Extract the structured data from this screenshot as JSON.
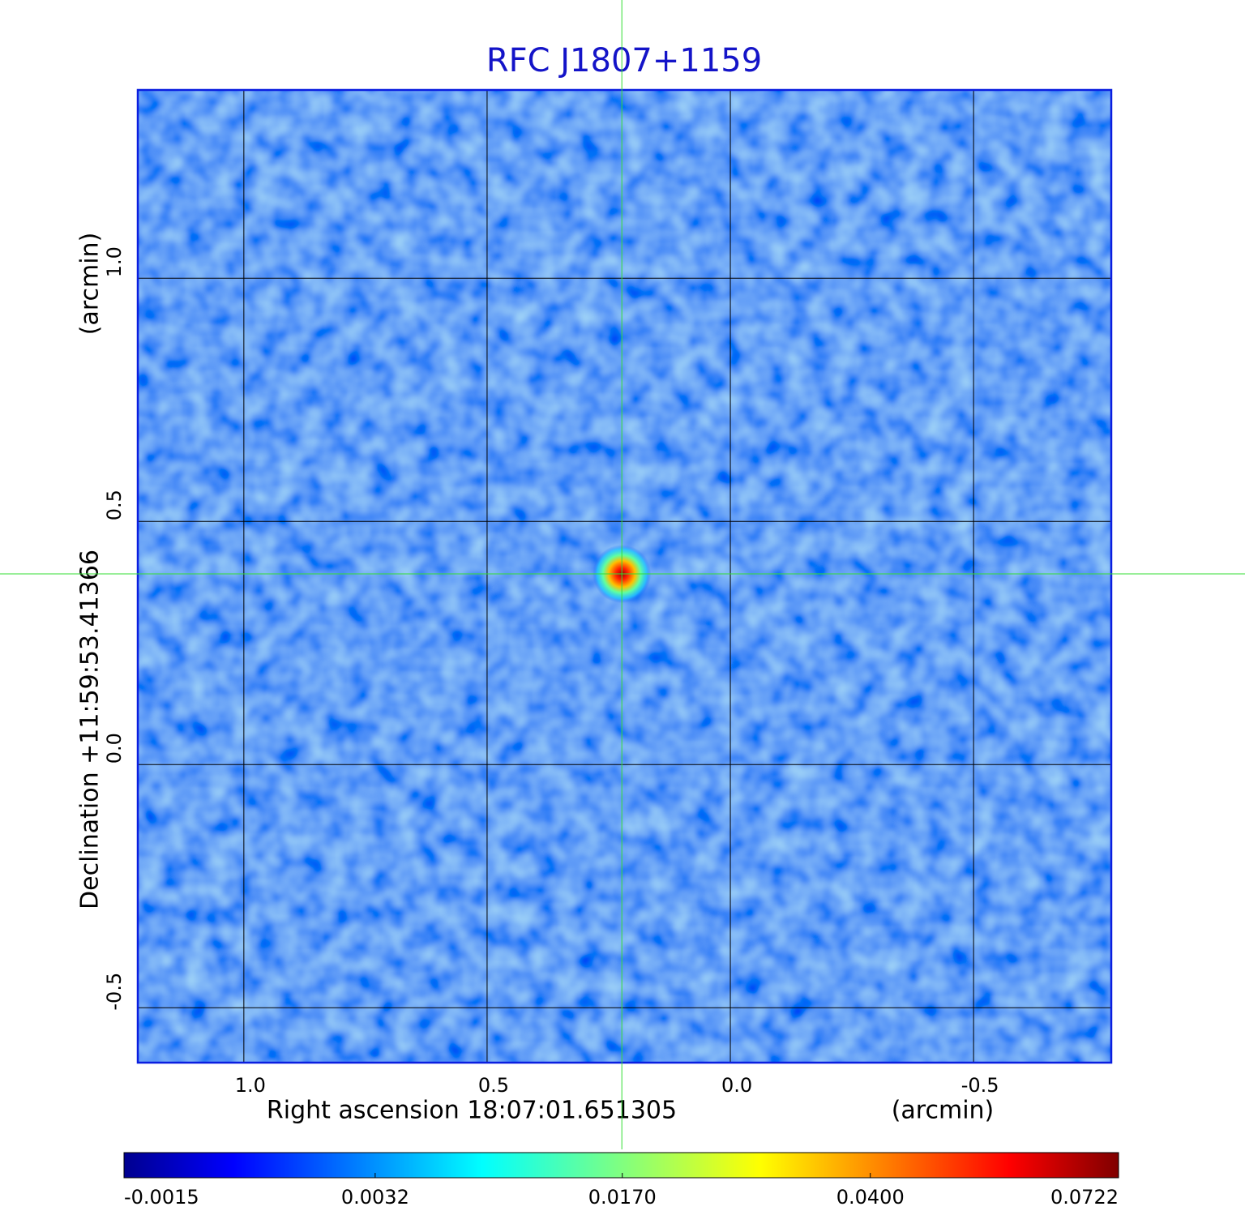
{
  "chart_data": {
    "type": "image",
    "title": "RFC J1807+1159",
    "xlabel": "Right ascension  18:07:01.651305",
    "xunit": "(arcmin)",
    "ylabel": "Declination  +11:59:53.41366",
    "yunit": "(arcmin)",
    "xlim": [
      1.218,
      -0.783
    ],
    "ylim": [
      -0.613,
      1.387
    ],
    "xticks": [
      {
        "value": 1,
        "label": "1.0"
      },
      0.5,
      {
        "value": 0,
        "label": "0.0"
      },
      -0.5
    ],
    "yticks": [
      {
        "value": 1,
        "label": "1.0"
      },
      0.5,
      {
        "value": 0,
        "label": "0.0"
      },
      -0.5
    ],
    "grid": true,
    "crosshair": {
      "x": 0.223,
      "y": 0.392,
      "color": "#33dd33"
    },
    "source": {
      "x": 0.223,
      "y": 0.392,
      "peak": 0.0722
    },
    "colorbar": {
      "colormap": "jet",
      "scale": "sqrt",
      "lim": [
        -0.0015,
        0.0722
      ],
      "ticks": [
        -0.0015,
        0.0032,
        {
          "value": 0.017,
          "label": "0.0170"
        },
        {
          "value": 0.04,
          "label": "0.0400"
        },
        0.0722
      ]
    }
  }
}
